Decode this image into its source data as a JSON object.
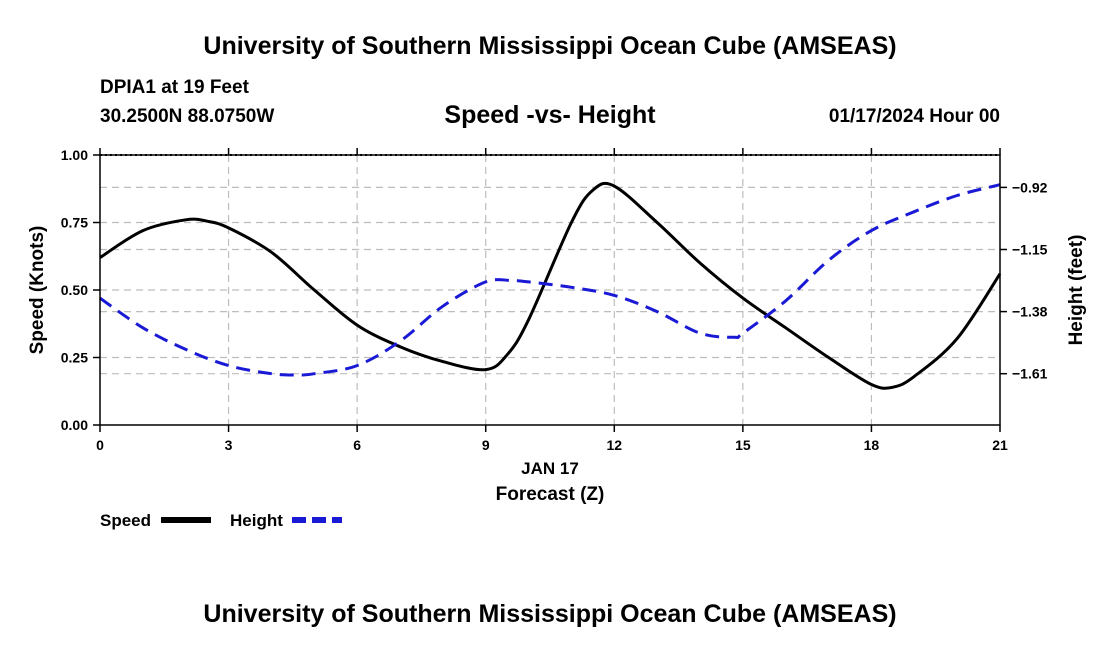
{
  "header": {
    "title": "University of Southern Mississippi Ocean Cube (AMSEAS)",
    "station": "DPIA1 at 19 Feet",
    "coordinates": "30.2500N  88.0750W",
    "subtitle": "Speed -vs- Height",
    "datetime": "01/17/2024 Hour 00"
  },
  "footer": {
    "title": "University of Southern Mississippi Ocean Cube (AMSEAS)"
  },
  "chart_data": {
    "type": "line",
    "title": "Speed -vs- Height",
    "xlabel": "Forecast (Z)",
    "xlabel_date": "JAN 17",
    "ylabel": "Speed (Knots)",
    "ylabel_right": "Height (feet)",
    "xlim": [
      0,
      21
    ],
    "ylim": [
      0,
      1
    ],
    "ylim_right": [
      -1.8,
      -0.8
    ],
    "grid": true,
    "x_ticks": [
      0,
      3,
      6,
      9,
      12,
      15,
      18,
      21
    ],
    "x_tick_labels": [
      "0",
      "3",
      "6",
      "9",
      "12",
      "15",
      "18",
      "21"
    ],
    "y_ticks": [
      0,
      0.25,
      0.5,
      0.75,
      1.0
    ],
    "y_tick_labels": [
      "0.00",
      "0.25",
      "0.50",
      "0.75",
      "1.00"
    ],
    "y_ticks_right": [
      -1.61,
      -1.38,
      -1.15,
      -0.92
    ],
    "y_tick_labels_right": [
      "-1.61",
      "-1.38",
      "-1.15",
      "-0.92"
    ],
    "legend": [
      {
        "label": "Speed",
        "color": "#000000",
        "dash": "solid"
      },
      {
        "label": "Height",
        "color": "#1a1ad6",
        "dash": "dashed"
      }
    ],
    "series": [
      {
        "name": "Speed",
        "axis": "left",
        "color": "#000000",
        "x": [
          0,
          1,
          2,
          2.5,
          3,
          4,
          5,
          6,
          7,
          8,
          9,
          9.5,
          10,
          11,
          11.5,
          12,
          13,
          14,
          15,
          16,
          17,
          18,
          18.5,
          19,
          20,
          21
        ],
        "values": [
          0.62,
          0.72,
          0.76,
          0.755,
          0.73,
          0.64,
          0.5,
          0.37,
          0.29,
          0.235,
          0.205,
          0.26,
          0.39,
          0.75,
          0.87,
          0.885,
          0.75,
          0.6,
          0.47,
          0.36,
          0.25,
          0.15,
          0.14,
          0.18,
          0.32,
          0.56
        ]
      },
      {
        "name": "Height",
        "axis": "right",
        "color": "#1a1ad6",
        "x": [
          0,
          1,
          2,
          3,
          4,
          4.6,
          5,
          6,
          7,
          8,
          9,
          9.6,
          10,
          11,
          12,
          13,
          14,
          14.8,
          15,
          16,
          17,
          18,
          19,
          20,
          21
        ],
        "values": [
          -1.33,
          -1.44,
          -1.52,
          -1.58,
          -1.61,
          -1.615,
          -1.61,
          -1.58,
          -1.49,
          -1.36,
          -1.27,
          -1.265,
          -1.27,
          -1.29,
          -1.32,
          -1.38,
          -1.46,
          -1.475,
          -1.46,
          -1.34,
          -1.19,
          -1.08,
          -1.01,
          -0.95,
          -0.91
        ]
      }
    ]
  }
}
